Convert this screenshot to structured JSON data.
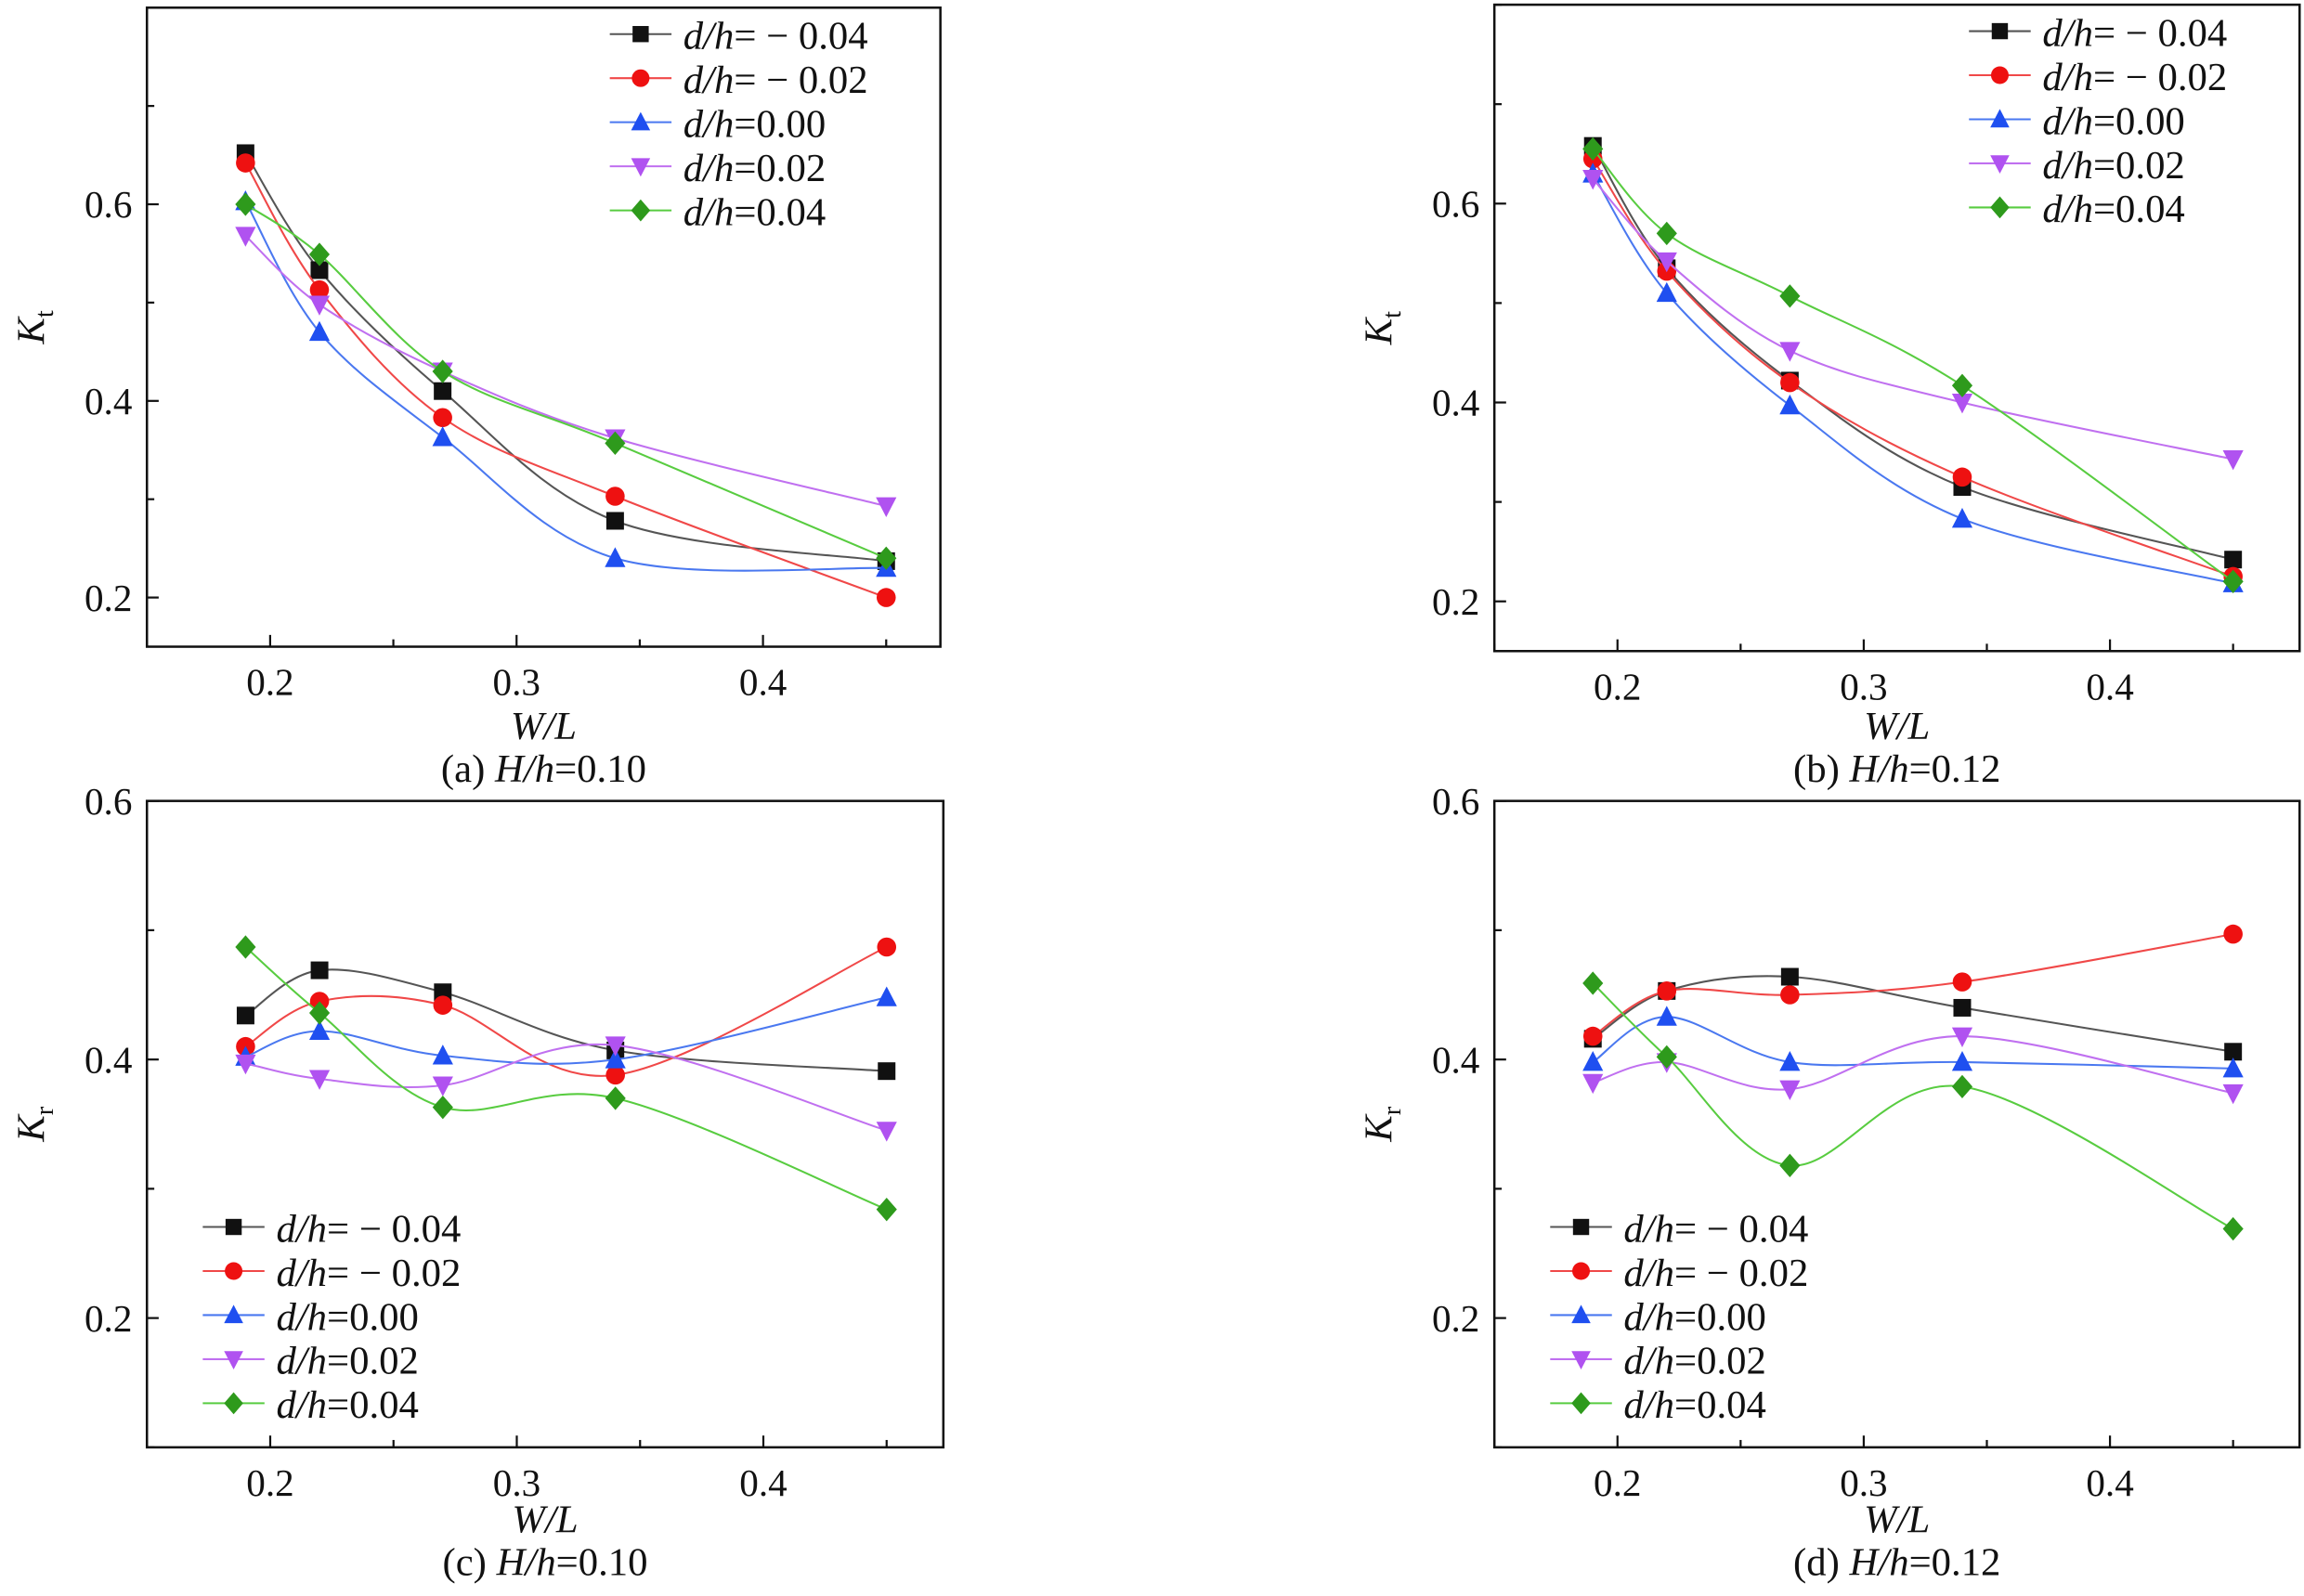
{
  "chart_data": [
    {
      "type": "line",
      "caption": "(a) H/h=0.10",
      "xlabel": "W/L",
      "ylabel": "K",
      "ylabel_sub": "t",
      "xlim": [
        0.15,
        0.472
      ],
      "ylim": [
        0.15,
        0.8
      ],
      "xticks": [
        0.2,
        0.3,
        0.4
      ],
      "yticks": [
        0.2,
        0.4,
        0.6
      ],
      "grid": false,
      "legend_position": "top-right",
      "x": [
        0.19,
        0.22,
        0.27,
        0.34,
        0.45
      ],
      "series": [
        {
          "name": "d/h= − 0.04",
          "marker": "square",
          "values": [
            0.652,
            0.533,
            0.41,
            0.278,
            0.237
          ]
        },
        {
          "name": "d/h= − 0.02",
          "marker": "circle",
          "values": [
            0.642,
            0.513,
            0.383,
            0.303,
            0.2
          ]
        },
        {
          "name": "d/h=0.00",
          "marker": "triangle-up",
          "values": [
            0.603,
            0.47,
            0.363,
            0.24,
            0.23
          ]
        },
        {
          "name": "d/h=0.02",
          "marker": "triangle-down",
          "values": [
            0.568,
            0.498,
            0.43,
            0.362,
            0.293
          ]
        },
        {
          "name": "d/h=0.04",
          "marker": "diamond",
          "values": [
            0.6,
            0.549,
            0.43,
            0.357,
            0.24
          ]
        }
      ]
    },
    {
      "type": "line",
      "caption": "(b) H/h=0.12",
      "xlabel": "W/L",
      "ylabel": "K",
      "ylabel_sub": "t",
      "xlim": [
        0.15,
        0.477
      ],
      "ylim": [
        0.15,
        0.8
      ],
      "xticks": [
        0.2,
        0.3,
        0.4
      ],
      "yticks": [
        0.2,
        0.4,
        0.6
      ],
      "grid": false,
      "legend_position": "top-right",
      "x": [
        0.19,
        0.22,
        0.27,
        0.34,
        0.45
      ],
      "series": [
        {
          "name": "d/h= − 0.04",
          "marker": "square",
          "values": [
            0.658,
            0.535,
            0.422,
            0.315,
            0.242
          ]
        },
        {
          "name": "d/h= − 0.02",
          "marker": "circle",
          "values": [
            0.645,
            0.532,
            0.42,
            0.325,
            0.225
          ]
        },
        {
          "name": "d/h=0.00",
          "marker": "triangle-up",
          "values": [
            0.63,
            0.51,
            0.397,
            0.283,
            0.218
          ]
        },
        {
          "name": "d/h=0.02",
          "marker": "triangle-down",
          "values": [
            0.625,
            0.542,
            0.452,
            0.4,
            0.343
          ]
        },
        {
          "name": "d/h=0.04",
          "marker": "diamond",
          "values": [
            0.655,
            0.57,
            0.507,
            0.417,
            0.22
          ]
        }
      ]
    },
    {
      "type": "line",
      "caption": "(c) H/h=0.10",
      "xlabel": "W/L",
      "ylabel": "K",
      "ylabel_sub": "r",
      "xlim": [
        0.15,
        0.473
      ],
      "ylim": [
        0.1,
        0.6
      ],
      "xticks": [
        0.2,
        0.3,
        0.4
      ],
      "yticks": [
        0.2,
        0.4,
        0.6
      ],
      "grid": false,
      "legend_position": "bottom-left",
      "x": [
        0.19,
        0.22,
        0.27,
        0.34,
        0.45
      ],
      "series": [
        {
          "name": "d/h= − 0.04",
          "marker": "square",
          "values": [
            0.434,
            0.469,
            0.452,
            0.407,
            0.391
          ]
        },
        {
          "name": "d/h= − 0.02",
          "marker": "circle",
          "values": [
            0.41,
            0.445,
            0.442,
            0.388,
            0.487
          ]
        },
        {
          "name": "d/h=0.00",
          "marker": "triangle-up",
          "values": [
            0.402,
            0.422,
            0.403,
            0.4,
            0.448
          ]
        },
        {
          "name": "d/h=0.02",
          "marker": "triangle-down",
          "values": [
            0.397,
            0.385,
            0.38,
            0.411,
            0.345
          ]
        },
        {
          "name": "d/h=0.04",
          "marker": "diamond",
          "values": [
            0.487,
            0.436,
            0.363,
            0.37,
            0.284
          ]
        }
      ]
    },
    {
      "type": "line",
      "caption": "(d) H/h=0.12",
      "xlabel": "W/L",
      "ylabel": "K",
      "ylabel_sub": "r",
      "xlim": [
        0.15,
        0.477
      ],
      "ylim": [
        0.1,
        0.6
      ],
      "xticks": [
        0.2,
        0.3,
        0.4
      ],
      "yticks": [
        0.2,
        0.4,
        0.6
      ],
      "grid": false,
      "legend_position": "bottom-left",
      "x": [
        0.19,
        0.22,
        0.27,
        0.34,
        0.45
      ],
      "series": [
        {
          "name": "d/h= − 0.04",
          "marker": "square",
          "values": [
            0.416,
            0.453,
            0.464,
            0.44,
            0.406
          ]
        },
        {
          "name": "d/h= − 0.02",
          "marker": "circle",
          "values": [
            0.418,
            0.453,
            0.45,
            0.46,
            0.497
          ]
        },
        {
          "name": "d/h=0.00",
          "marker": "triangle-up",
          "values": [
            0.398,
            0.433,
            0.398,
            0.398,
            0.393
          ]
        },
        {
          "name": "d/h=0.02",
          "marker": "triangle-down",
          "values": [
            0.382,
            0.398,
            0.377,
            0.418,
            0.374
          ]
        },
        {
          "name": "d/h=0.04",
          "marker": "diamond",
          "values": [
            0.459,
            0.402,
            0.318,
            0.379,
            0.269
          ]
        }
      ]
    }
  ],
  "colors": {
    "series_markers": [
      "#111111",
      "#ee1111",
      "#1f4ff0",
      "#b052f0",
      "#2e9a1c"
    ],
    "series_lines": [
      "#555555",
      "#f04848",
      "#4a78f0",
      "#c070f0",
      "#58cc40"
    ]
  }
}
